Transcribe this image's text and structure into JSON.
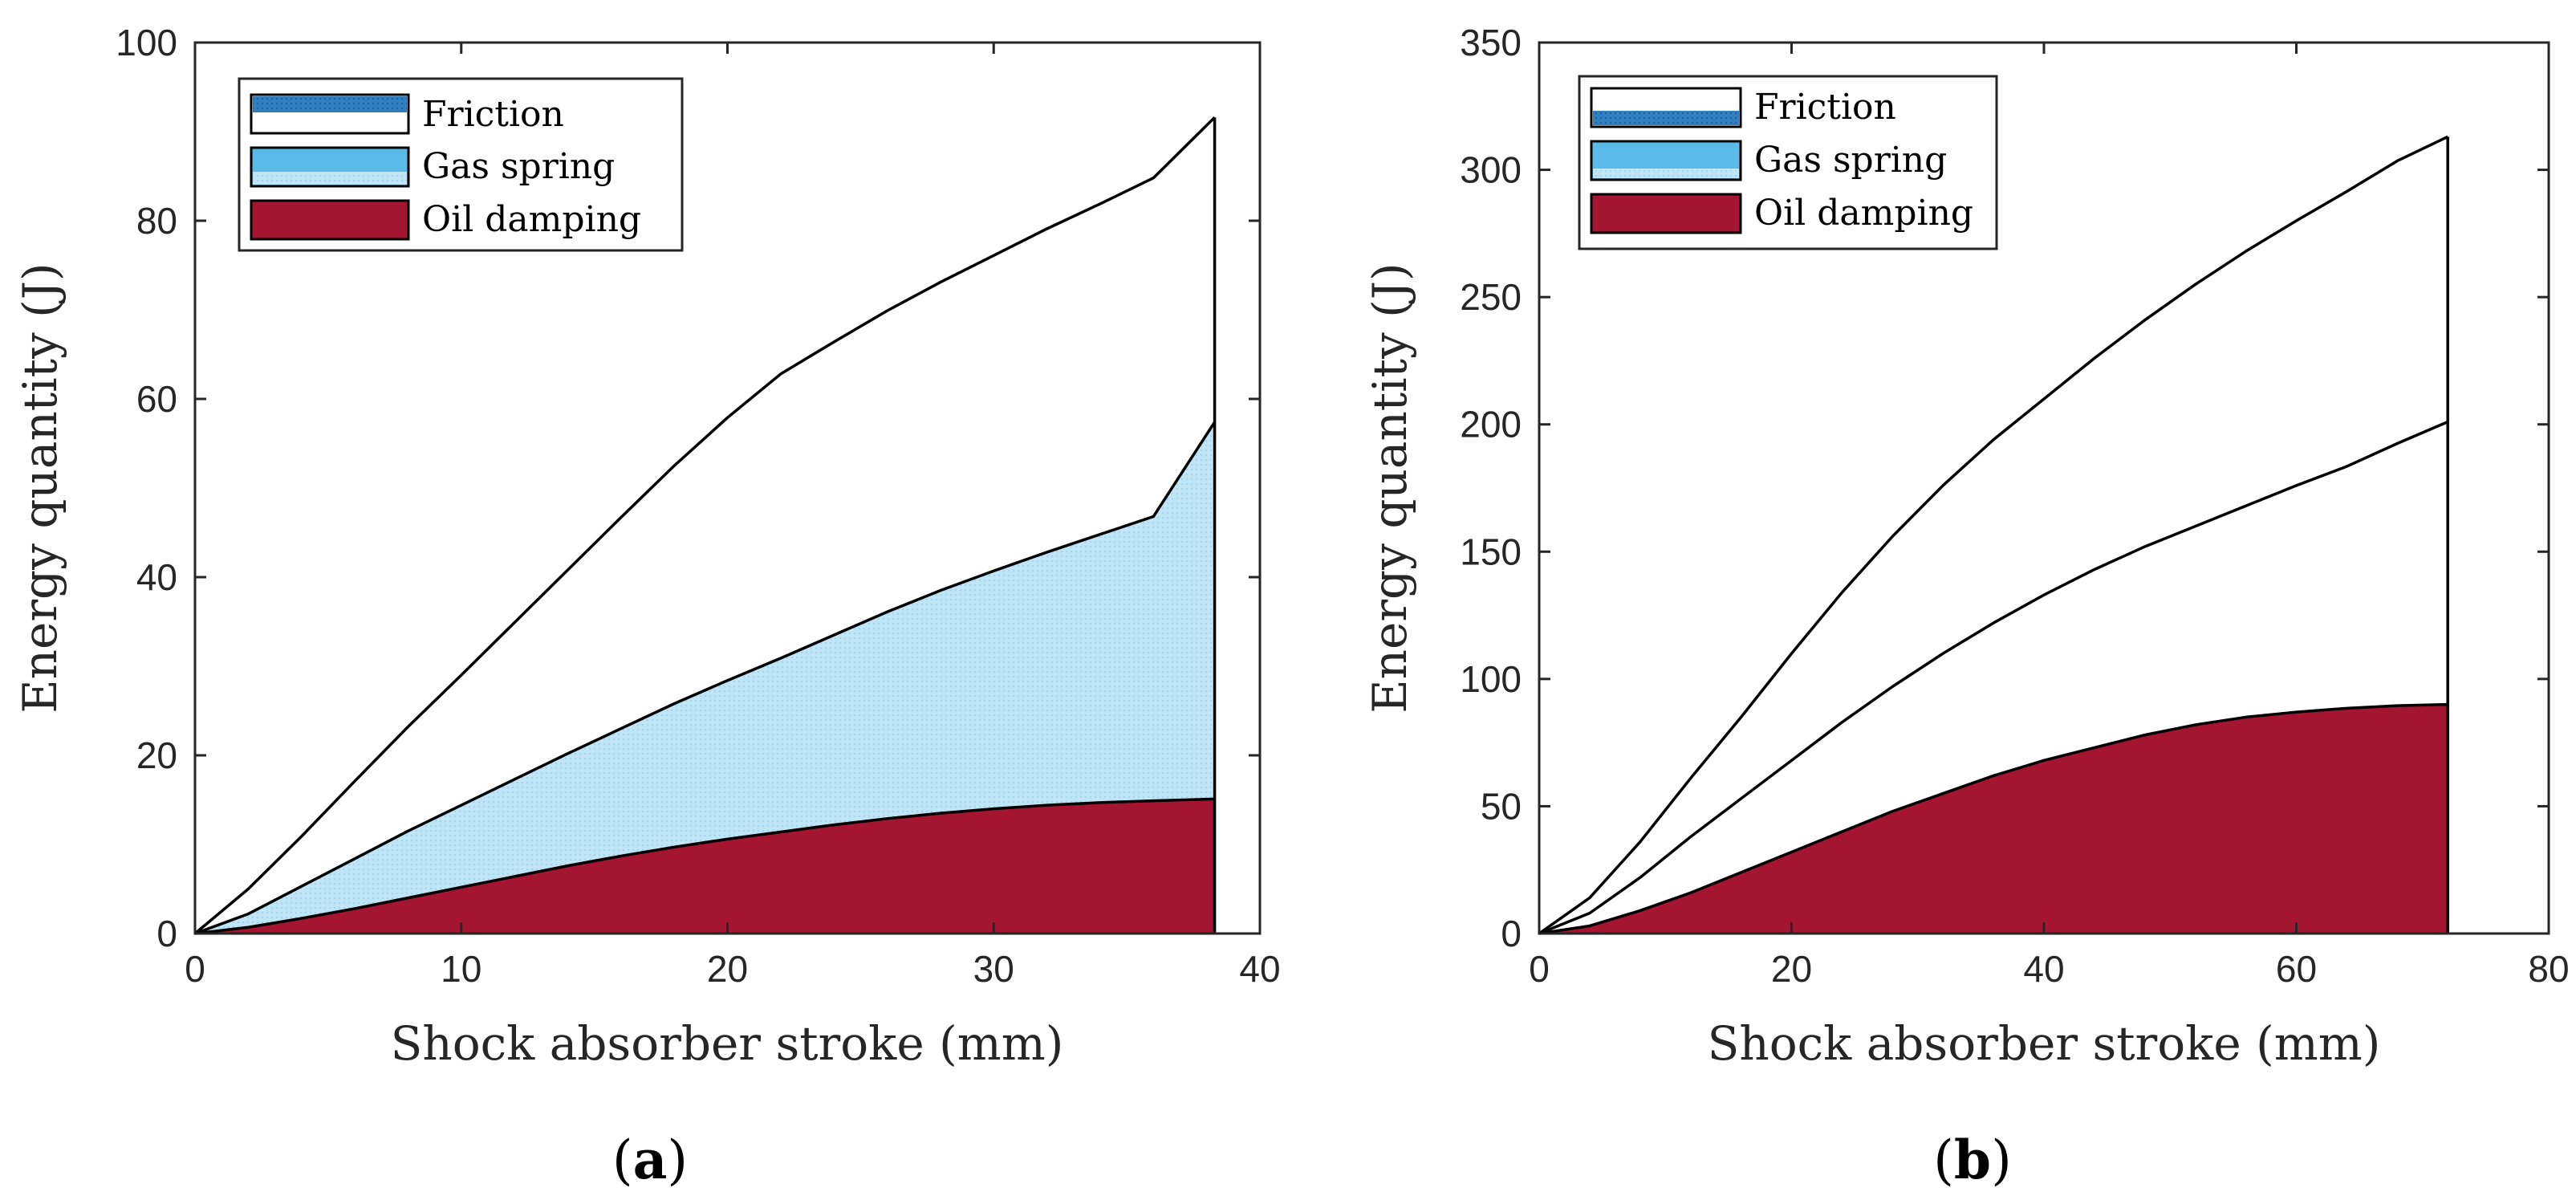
{
  "chart_data": [
    {
      "type": "area",
      "panel_label": "a",
      "title": "",
      "xlabel": "Shock absorber stroke (mm)",
      "ylabel": "Energy quantity (J)",
      "xlim": [
        0,
        40
      ],
      "ylim": [
        0,
        100
      ],
      "xticks": [
        0,
        10,
        20,
        30,
        40
      ],
      "yticks": [
        0,
        20,
        40,
        60,
        80,
        100
      ],
      "legend_position": "top-left",
      "stacked": true,
      "x": [
        0,
        2,
        4,
        6,
        8,
        10,
        12,
        14,
        16,
        18,
        20,
        22,
        24,
        26,
        28,
        30,
        32,
        34,
        36,
        38.3
      ],
      "series": [
        {
          "name": "Oil damping",
          "color": "#a31530",
          "values": [
            0,
            0.7,
            1.7,
            2.8,
            4.0,
            5.2,
            6.4,
            7.6,
            8.7,
            9.7,
            10.6,
            11.4,
            12.2,
            12.9,
            13.5,
            14.0,
            14.4,
            14.7,
            14.9,
            15.1
          ]
        },
        {
          "name": "Gas spring",
          "color": "#b9e3f6",
          "values": [
            0,
            1.5,
            3.6,
            5.6,
            7.5,
            9.2,
            10.9,
            12.6,
            14.3,
            16.1,
            17.8,
            19.5,
            21.3,
            23.2,
            25.0,
            26.7,
            28.4,
            30.1,
            31.9,
            42.3
          ]
        },
        {
          "name": "Friction",
          "color": "#ffffff",
          "values": [
            0,
            2.8,
            5.6,
            8.7,
            11.7,
            14.6,
            17.6,
            20.6,
            23.7,
            26.7,
            29.5,
            31.9,
            32.9,
            33.8,
            34.6,
            35.4,
            36.3,
            37.1,
            38.0,
            34.2
          ]
        }
      ]
    },
    {
      "type": "area",
      "panel_label": "b",
      "title": "",
      "xlabel": "Shock absorber stroke (mm)",
      "ylabel": "Energy quantity (J)",
      "xlim": [
        0,
        80
      ],
      "ylim": [
        0,
        350
      ],
      "xticks": [
        0,
        20,
        40,
        60,
        80
      ],
      "yticks": [
        0,
        50,
        100,
        150,
        200,
        250,
        300,
        350
      ],
      "legend_position": "top-left",
      "stacked": true,
      "x": [
        0,
        4,
        8,
        12,
        16,
        20,
        24,
        28,
        32,
        36,
        40,
        44,
        48,
        52,
        56,
        60,
        64,
        68,
        72
      ],
      "series": [
        {
          "name": "Oil damping",
          "color": "#a31530",
          "values": [
            0,
            3,
            9,
            16,
            24,
            32,
            40,
            48,
            55,
            62,
            68,
            73,
            78,
            82,
            85,
            87,
            88.5,
            89.5,
            90
          ]
        },
        {
          "name": "Gas spring",
          "color": "#5bbbe8",
          "values": [
            0,
            5,
            13,
            22,
            29,
            36,
            43,
            49,
            55,
            60,
            65,
            70,
            74,
            78,
            83,
            89,
            95,
            103,
            111
          ]
        },
        {
          "name": "Friction",
          "color": "#2f7fc1",
          "values": [
            0,
            6,
            14,
            23,
            32,
            42,
            51,
            59,
            66,
            72,
            77,
            83,
            89,
            95,
            100,
            104,
            108,
            111,
            112
          ]
        }
      ]
    }
  ],
  "legend_order": [
    "Friction",
    "Gas spring",
    "Oil damping"
  ]
}
